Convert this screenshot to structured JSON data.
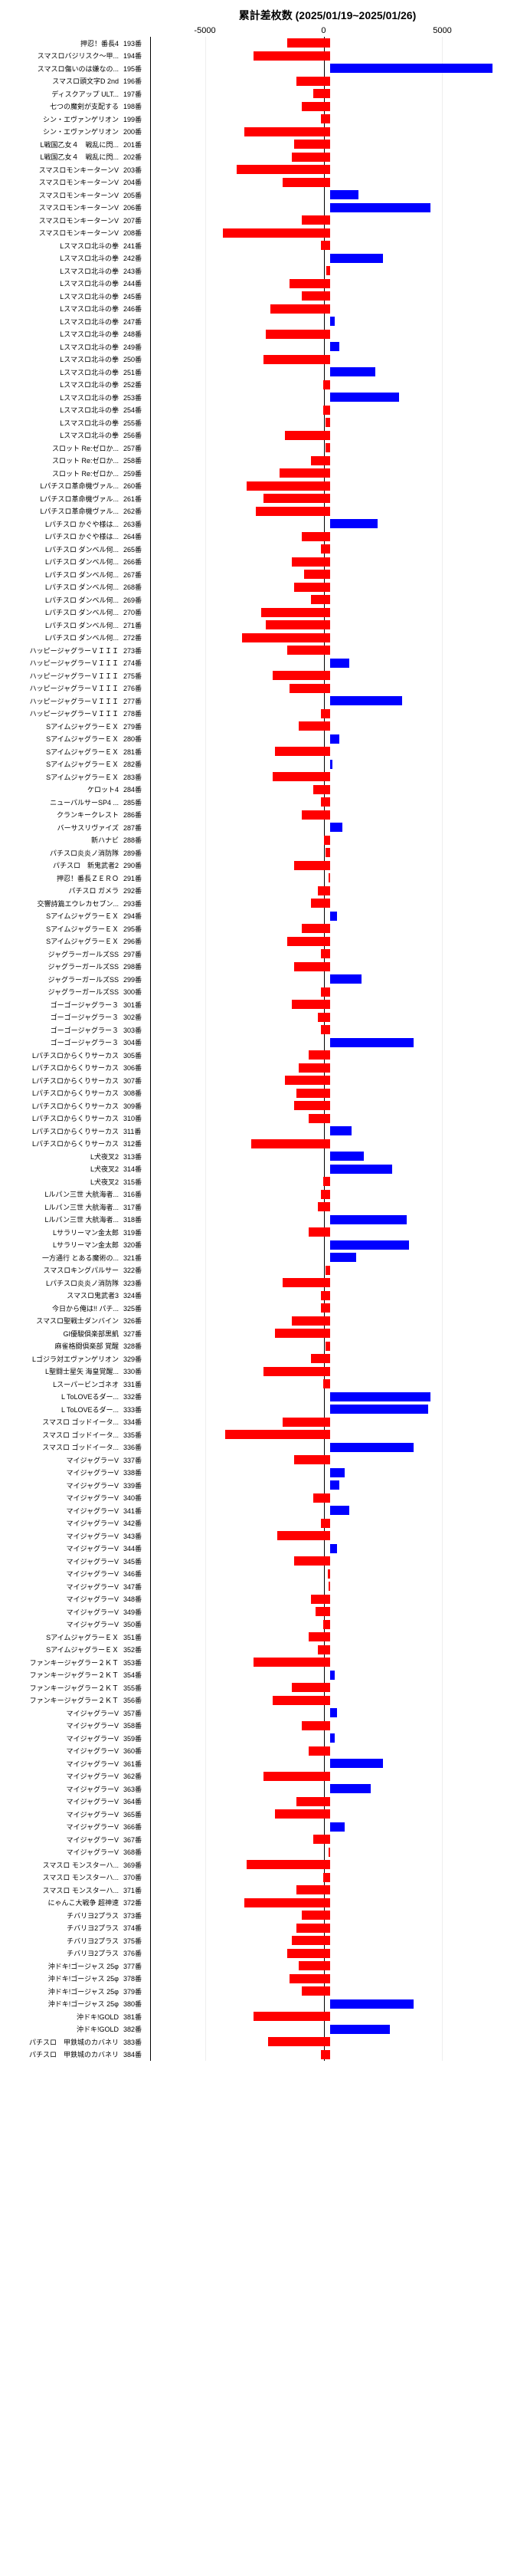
{
  "title": "累計差枚数 (2025/01/19~2025/01/26)",
  "axis": {
    "min": -7500,
    "max": 7500,
    "tick_neg": "-5000",
    "tick_zero": "0",
    "tick_pos": "5000"
  },
  "colors": {
    "neg": "#ff0000",
    "pos": "#0000ff",
    "grid": "#eeeeee",
    "axis_line": "#000000"
  },
  "rows": [
    {
      "label": "押忍！番長4",
      "num": "193番",
      "val": -1800
    },
    {
      "label": "スマスロバジリスク〜甲...",
      "num": "194番",
      "val": -3200
    },
    {
      "label": "スマスロ傷いのは嫌なの...",
      "num": "195番",
      "val": 6800
    },
    {
      "label": "スマスロ頭文字D 2nd",
      "num": "196番",
      "val": -1400
    },
    {
      "label": "ディスクアップ ULT...",
      "num": "197番",
      "val": -700
    },
    {
      "label": "七つの魔剣が支配する",
      "num": "198番",
      "val": -1200
    },
    {
      "label": "シン・エヴァンゲリオン",
      "num": "199番",
      "val": -400
    },
    {
      "label": "シン・エヴァンゲリオン",
      "num": "200番",
      "val": -3600
    },
    {
      "label": "L戦国乙女４　戦乱に閃...",
      "num": "201番",
      "val": -1500
    },
    {
      "label": "L戦国乙女４　戦乱に閃...",
      "num": "202番",
      "val": -1600
    },
    {
      "label": "スマスロモンキーターンV",
      "num": "203番",
      "val": -3900
    },
    {
      "label": "スマスロモンキーターンV",
      "num": "204番",
      "val": -2000
    },
    {
      "label": "スマスロモンキーターンV",
      "num": "205番",
      "val": 1200
    },
    {
      "label": "スマスロモンキーターンV",
      "num": "206番",
      "val": 4200
    },
    {
      "label": "スマスロモンキーターンV",
      "num": "207番",
      "val": -1200
    },
    {
      "label": "スマスロモンキーターンV",
      "num": "208番",
      "val": -4500
    },
    {
      "label": "Lスマスロ北斗の拳",
      "num": "241番",
      "val": -400
    },
    {
      "label": "Lスマスロ北斗の拳",
      "num": "242番",
      "val": 2200
    },
    {
      "label": "Lスマスロ北斗の拳",
      "num": "243番",
      "val": -150
    },
    {
      "label": "Lスマスロ北斗の拳",
      "num": "244番",
      "val": -1700
    },
    {
      "label": "Lスマスロ北斗の拳",
      "num": "245番",
      "val": -1200
    },
    {
      "label": "Lスマスロ北斗の拳",
      "num": "246番",
      "val": -2500
    },
    {
      "label": "Lスマスロ北斗の拳",
      "num": "247番",
      "val": 200
    },
    {
      "label": "Lスマスロ北斗の拳",
      "num": "248番",
      "val": -2700
    },
    {
      "label": "Lスマスロ北斗の拳",
      "num": "249番",
      "val": 400
    },
    {
      "label": "Lスマスロ北斗の拳",
      "num": "250番",
      "val": -2800
    },
    {
      "label": "Lスマスロ北斗の拳",
      "num": "251番",
      "val": 1900
    },
    {
      "label": "Lスマスロ北斗の拳",
      "num": "252番",
      "val": -300
    },
    {
      "label": "Lスマスロ北斗の拳",
      "num": "253番",
      "val": 2900
    },
    {
      "label": "Lスマスロ北斗の拳",
      "num": "254番",
      "val": -300
    },
    {
      "label": "Lスマスロ北斗の拳",
      "num": "255番",
      "val": -200
    },
    {
      "label": "Lスマスロ北斗の拳",
      "num": "256番",
      "val": -1900
    },
    {
      "label": "スロット Re:ゼロか...",
      "num": "257番",
      "val": -200
    },
    {
      "label": "スロット Re:ゼロか...",
      "num": "258番",
      "val": -800
    },
    {
      "label": "スロット Re:ゼロか...",
      "num": "259番",
      "val": -2100
    },
    {
      "label": "Lパチスロ革命機ヴァル...",
      "num": "260番",
      "val": -3500
    },
    {
      "label": "Lパチスロ革命機ヴァル...",
      "num": "261番",
      "val": -2800
    },
    {
      "label": "Lパチスロ革命機ヴァル...",
      "num": "262番",
      "val": -3100
    },
    {
      "label": "Lパチスロ かぐや様は...",
      "num": "263番",
      "val": 2000
    },
    {
      "label": "Lパチスロ かぐや様は...",
      "num": "264番",
      "val": -1200
    },
    {
      "label": "Lパチスロ ダンベル何...",
      "num": "265番",
      "val": -400
    },
    {
      "label": "Lパチスロ ダンベル何...",
      "num": "266番",
      "val": -1600
    },
    {
      "label": "Lパチスロ ダンベル何...",
      "num": "267番",
      "val": -1100
    },
    {
      "label": "Lパチスロ ダンベル何...",
      "num": "268番",
      "val": -1500
    },
    {
      "label": "Lパチスロ ダンベル何...",
      "num": "269番",
      "val": -800
    },
    {
      "label": "Lパチスロ ダンベル何...",
      "num": "270番",
      "val": -2900
    },
    {
      "label": "Lパチスロ ダンベル何...",
      "num": "271番",
      "val": -2700
    },
    {
      "label": "Lパチスロ ダンベル何...",
      "num": "272番",
      "val": -3700
    },
    {
      "label": "ハッピージャグラーＶＩＩＩ",
      "num": "273番",
      "val": -1800
    },
    {
      "label": "ハッピージャグラーＶＩＩＩ",
      "num": "274番",
      "val": 800
    },
    {
      "label": "ハッピージャグラーＶＩＩＩ",
      "num": "275番",
      "val": -2400
    },
    {
      "label": "ハッピージャグラーＶＩＩＩ",
      "num": "276番",
      "val": -1700
    },
    {
      "label": "ハッピージャグラーＶＩＩＩ",
      "num": "277番",
      "val": 3000
    },
    {
      "label": "ハッピージャグラーＶＩＩＩ",
      "num": "278番",
      "val": -400
    },
    {
      "label": "SアイムジャグラーＥＸ",
      "num": "279番",
      "val": -1300
    },
    {
      "label": "SアイムジャグラーＥＸ",
      "num": "280番",
      "val": 400
    },
    {
      "label": "SアイムジャグラーＥＸ",
      "num": "281番",
      "val": -2300
    },
    {
      "label": "SアイムジャグラーＥＸ",
      "num": "282番",
      "val": 100
    },
    {
      "label": "SアイムジャグラーＥＸ",
      "num": "283番",
      "val": -2400
    },
    {
      "label": "ケロット4",
      "num": "284番",
      "val": -700
    },
    {
      "label": "ニューパルサーSP4 ...",
      "num": "285番",
      "val": -400
    },
    {
      "label": "クランキークレスト",
      "num": "286番",
      "val": -1200
    },
    {
      "label": "バーサスリヴァイズ",
      "num": "287番",
      "val": 500
    },
    {
      "label": "新ハナビ",
      "num": "288番",
      "val": -250
    },
    {
      "label": "パチスロ炎炎ノ消防隊",
      "num": "289番",
      "val": -200
    },
    {
      "label": "パチスロ　新鬼武者2",
      "num": "290番",
      "val": -1500
    },
    {
      "label": "押忍！番長ＺＥＲＯ",
      "num": "291番",
      "val": -50
    },
    {
      "label": "パチスロ ガメラ",
      "num": "292番",
      "val": -500
    },
    {
      "label": "交響詩篇エウレカセブン...",
      "num": "293番",
      "val": -800
    },
    {
      "label": "SアイムジャグラーＥＸ",
      "num": "294番",
      "val": 300
    },
    {
      "label": "SアイムジャグラーＥＸ",
      "num": "295番",
      "val": -1200
    },
    {
      "label": "SアイムジャグラーＥＸ",
      "num": "296番",
      "val": -1800
    },
    {
      "label": "ジャグラーガールズSS",
      "num": "297番",
      "val": -400
    },
    {
      "label": "ジャグラーガールズSS",
      "num": "298番",
      "val": -1500
    },
    {
      "label": "ジャグラーガールズSS",
      "num": "299番",
      "val": 1300
    },
    {
      "label": "ジャグラーガールズSS",
      "num": "300番",
      "val": -400
    },
    {
      "label": "ゴーゴージャグラー３",
      "num": "301番",
      "val": -1600
    },
    {
      "label": "ゴーゴージャグラー３",
      "num": "302番",
      "val": -500
    },
    {
      "label": "ゴーゴージャグラー３",
      "num": "303番",
      "val": -400
    },
    {
      "label": "ゴーゴージャグラー３",
      "num": "304番",
      "val": 3500
    },
    {
      "label": "Lパチスロからくりサーカス",
      "num": "305番",
      "val": -900
    },
    {
      "label": "Lパチスロからくりサーカス",
      "num": "306番",
      "val": -1300
    },
    {
      "label": "Lパチスロからくりサーカス",
      "num": "307番",
      "val": -1900
    },
    {
      "label": "Lパチスロからくりサーカス",
      "num": "308番",
      "val": -1400
    },
    {
      "label": "Lパチスロからくりサーカス",
      "num": "309番",
      "val": -1500
    },
    {
      "label": "Lパチスロからくりサーカス",
      "num": "310番",
      "val": -900
    },
    {
      "label": "Lパチスロからくりサーカス",
      "num": "311番",
      "val": 900
    },
    {
      "label": "Lパチスロからくりサーカス",
      "num": "312番",
      "val": -3300
    },
    {
      "label": "L犬夜叉2",
      "num": "313番",
      "val": 1400
    },
    {
      "label": "L犬夜叉2",
      "num": "314番",
      "val": 2600
    },
    {
      "label": "L犬夜叉2",
      "num": "315番",
      "val": -300
    },
    {
      "label": "Lルパン三世 大航海者...",
      "num": "316番",
      "val": -400
    },
    {
      "label": "Lルパン三世 大航海者...",
      "num": "317番",
      "val": -500
    },
    {
      "label": "Lルパン三世 大航海者...",
      "num": "318番",
      "val": 3200
    },
    {
      "label": "Lサラリーマン金太郎",
      "num": "319番",
      "val": -900
    },
    {
      "label": "Lサラリーマン金太郎",
      "num": "320番",
      "val": 3300
    },
    {
      "label": "一方通行 とある魔術の...",
      "num": "321番",
      "val": 1100
    },
    {
      "label": "スマスロキングパルサー",
      "num": "322番",
      "val": -200
    },
    {
      "label": "Lパチスロ炎炎ノ消防隊",
      "num": "323番",
      "val": -2000
    },
    {
      "label": "スマスロ鬼武者3",
      "num": "324番",
      "val": -400
    },
    {
      "label": "今日から俺は!! パチ...",
      "num": "325番",
      "val": -400
    },
    {
      "label": "スマスロ聖戦士ダンバイン",
      "num": "326番",
      "val": -1600
    },
    {
      "label": "GI優駿倶楽部黒凱",
      "num": "327番",
      "val": -2300
    },
    {
      "label": "麻雀格闘倶楽部 覚醒",
      "num": "328番",
      "val": -200
    },
    {
      "label": "Lゴジラ対エヴァンゲリオン",
      "num": "329番",
      "val": -800
    },
    {
      "label": "L聖闘士星矢 海皇覚醒...",
      "num": "330番",
      "val": -2800
    },
    {
      "label": "Lスーパービンゴネオ",
      "num": "331番",
      "val": -300
    },
    {
      "label": "L ToLOVEるダー...",
      "num": "332番",
      "val": 4200
    },
    {
      "label": "L ToLOVEるダー...",
      "num": "333番",
      "val": 4100
    },
    {
      "label": "スマスロ ゴッドイータ...",
      "num": "334番",
      "val": -2000
    },
    {
      "label": "スマスロ ゴッドイータ...",
      "num": "335番",
      "val": -4400
    },
    {
      "label": "スマスロ ゴッドイータ...",
      "num": "336番",
      "val": 3500
    },
    {
      "label": "マイジャグラーV",
      "num": "337番",
      "val": -1500
    },
    {
      "label": "マイジャグラーV",
      "num": "338番",
      "val": 600
    },
    {
      "label": "マイジャグラーV",
      "num": "339番",
      "val": 400
    },
    {
      "label": "マイジャグラーV",
      "num": "340番",
      "val": -700
    },
    {
      "label": "マイジャグラーV",
      "num": "341番",
      "val": 800
    },
    {
      "label": "マイジャグラーV",
      "num": "342番",
      "val": -400
    },
    {
      "label": "マイジャグラーV",
      "num": "343番",
      "val": -2200
    },
    {
      "label": "マイジャグラーV",
      "num": "344番",
      "val": 300
    },
    {
      "label": "マイジャグラーV",
      "num": "345番",
      "val": -1500
    },
    {
      "label": "マイジャグラーV",
      "num": "346番",
      "val": -100
    },
    {
      "label": "マイジャグラーV",
      "num": "347番",
      "val": -50
    },
    {
      "label": "マイジャグラーV",
      "num": "348番",
      "val": -800
    },
    {
      "label": "マイジャグラーV",
      "num": "349番",
      "val": -600
    },
    {
      "label": "マイジャグラーV",
      "num": "350番",
      "val": -300
    },
    {
      "label": "SアイムジャグラーＥＸ",
      "num": "351番",
      "val": -900
    },
    {
      "label": "SアイムジャグラーＥＸ",
      "num": "352番",
      "val": -500
    },
    {
      "label": "ファンキージャグラー２ＫＴ",
      "num": "353番",
      "val": -3200
    },
    {
      "label": "ファンキージャグラー２ＫＴ",
      "num": "354番",
      "val": 200
    },
    {
      "label": "ファンキージャグラー２ＫＴ",
      "num": "355番",
      "val": -1600
    },
    {
      "label": "ファンキージャグラー２ＫＴ",
      "num": "356番",
      "val": -2400
    },
    {
      "label": "マイジャグラーV",
      "num": "357番",
      "val": 300
    },
    {
      "label": "マイジャグラーV",
      "num": "358番",
      "val": -1200
    },
    {
      "label": "マイジャグラーV",
      "num": "359番",
      "val": 200
    },
    {
      "label": "マイジャグラーV",
      "num": "360番",
      "val": -900
    },
    {
      "label": "マイジャグラーV",
      "num": "361番",
      "val": 2200
    },
    {
      "label": "マイジャグラーV",
      "num": "362番",
      "val": -2800
    },
    {
      "label": "マイジャグラーV",
      "num": "363番",
      "val": 1700
    },
    {
      "label": "マイジャグラーV",
      "num": "364番",
      "val": -1400
    },
    {
      "label": "マイジャグラーV",
      "num": "365番",
      "val": -2300
    },
    {
      "label": "マイジャグラーV",
      "num": "366番",
      "val": 600
    },
    {
      "label": "マイジャグラーV",
      "num": "367番",
      "val": -700
    },
    {
      "label": "マイジャグラーV",
      "num": "368番",
      "val": -50
    },
    {
      "label": "スマスロ モンスターハ...",
      "num": "369番",
      "val": -3500
    },
    {
      "label": "スマスロ モンスターハ...",
      "num": "370番",
      "val": -300
    },
    {
      "label": "スマスロ モンスターハ...",
      "num": "371番",
      "val": -1400
    },
    {
      "label": "にゃんこ大戦争 超神速",
      "num": "372番",
      "val": -3600
    },
    {
      "label": "チバリヨ2プラス",
      "num": "373番",
      "val": -1200
    },
    {
      "label": "チバリヨ2プラス",
      "num": "374番",
      "val": -1400
    },
    {
      "label": "チバリヨ2プラス",
      "num": "375番",
      "val": -1600
    },
    {
      "label": "チバリヨ2プラス",
      "num": "376番",
      "val": -1800
    },
    {
      "label": "沖ドキ!ゴージャス 25φ",
      "num": "377番",
      "val": -1300
    },
    {
      "label": "沖ドキ!ゴージャス 25φ",
      "num": "378番",
      "val": -1700
    },
    {
      "label": "沖ドキ!ゴージャス 25φ",
      "num": "379番",
      "val": -1200
    },
    {
      "label": "沖ドキ!ゴージャス 25φ",
      "num": "380番",
      "val": 3500
    },
    {
      "label": "沖ドキ!GOLD",
      "num": "381番",
      "val": -3200
    },
    {
      "label": "沖ドキ!GOLD",
      "num": "382番",
      "val": 2500
    },
    {
      "label": "パチスロ　甲鉄城のカバネリ",
      "num": "383番",
      "val": -2600
    },
    {
      "label": "パチスロ　甲鉄城のカバネリ",
      "num": "384番",
      "val": -400
    }
  ]
}
